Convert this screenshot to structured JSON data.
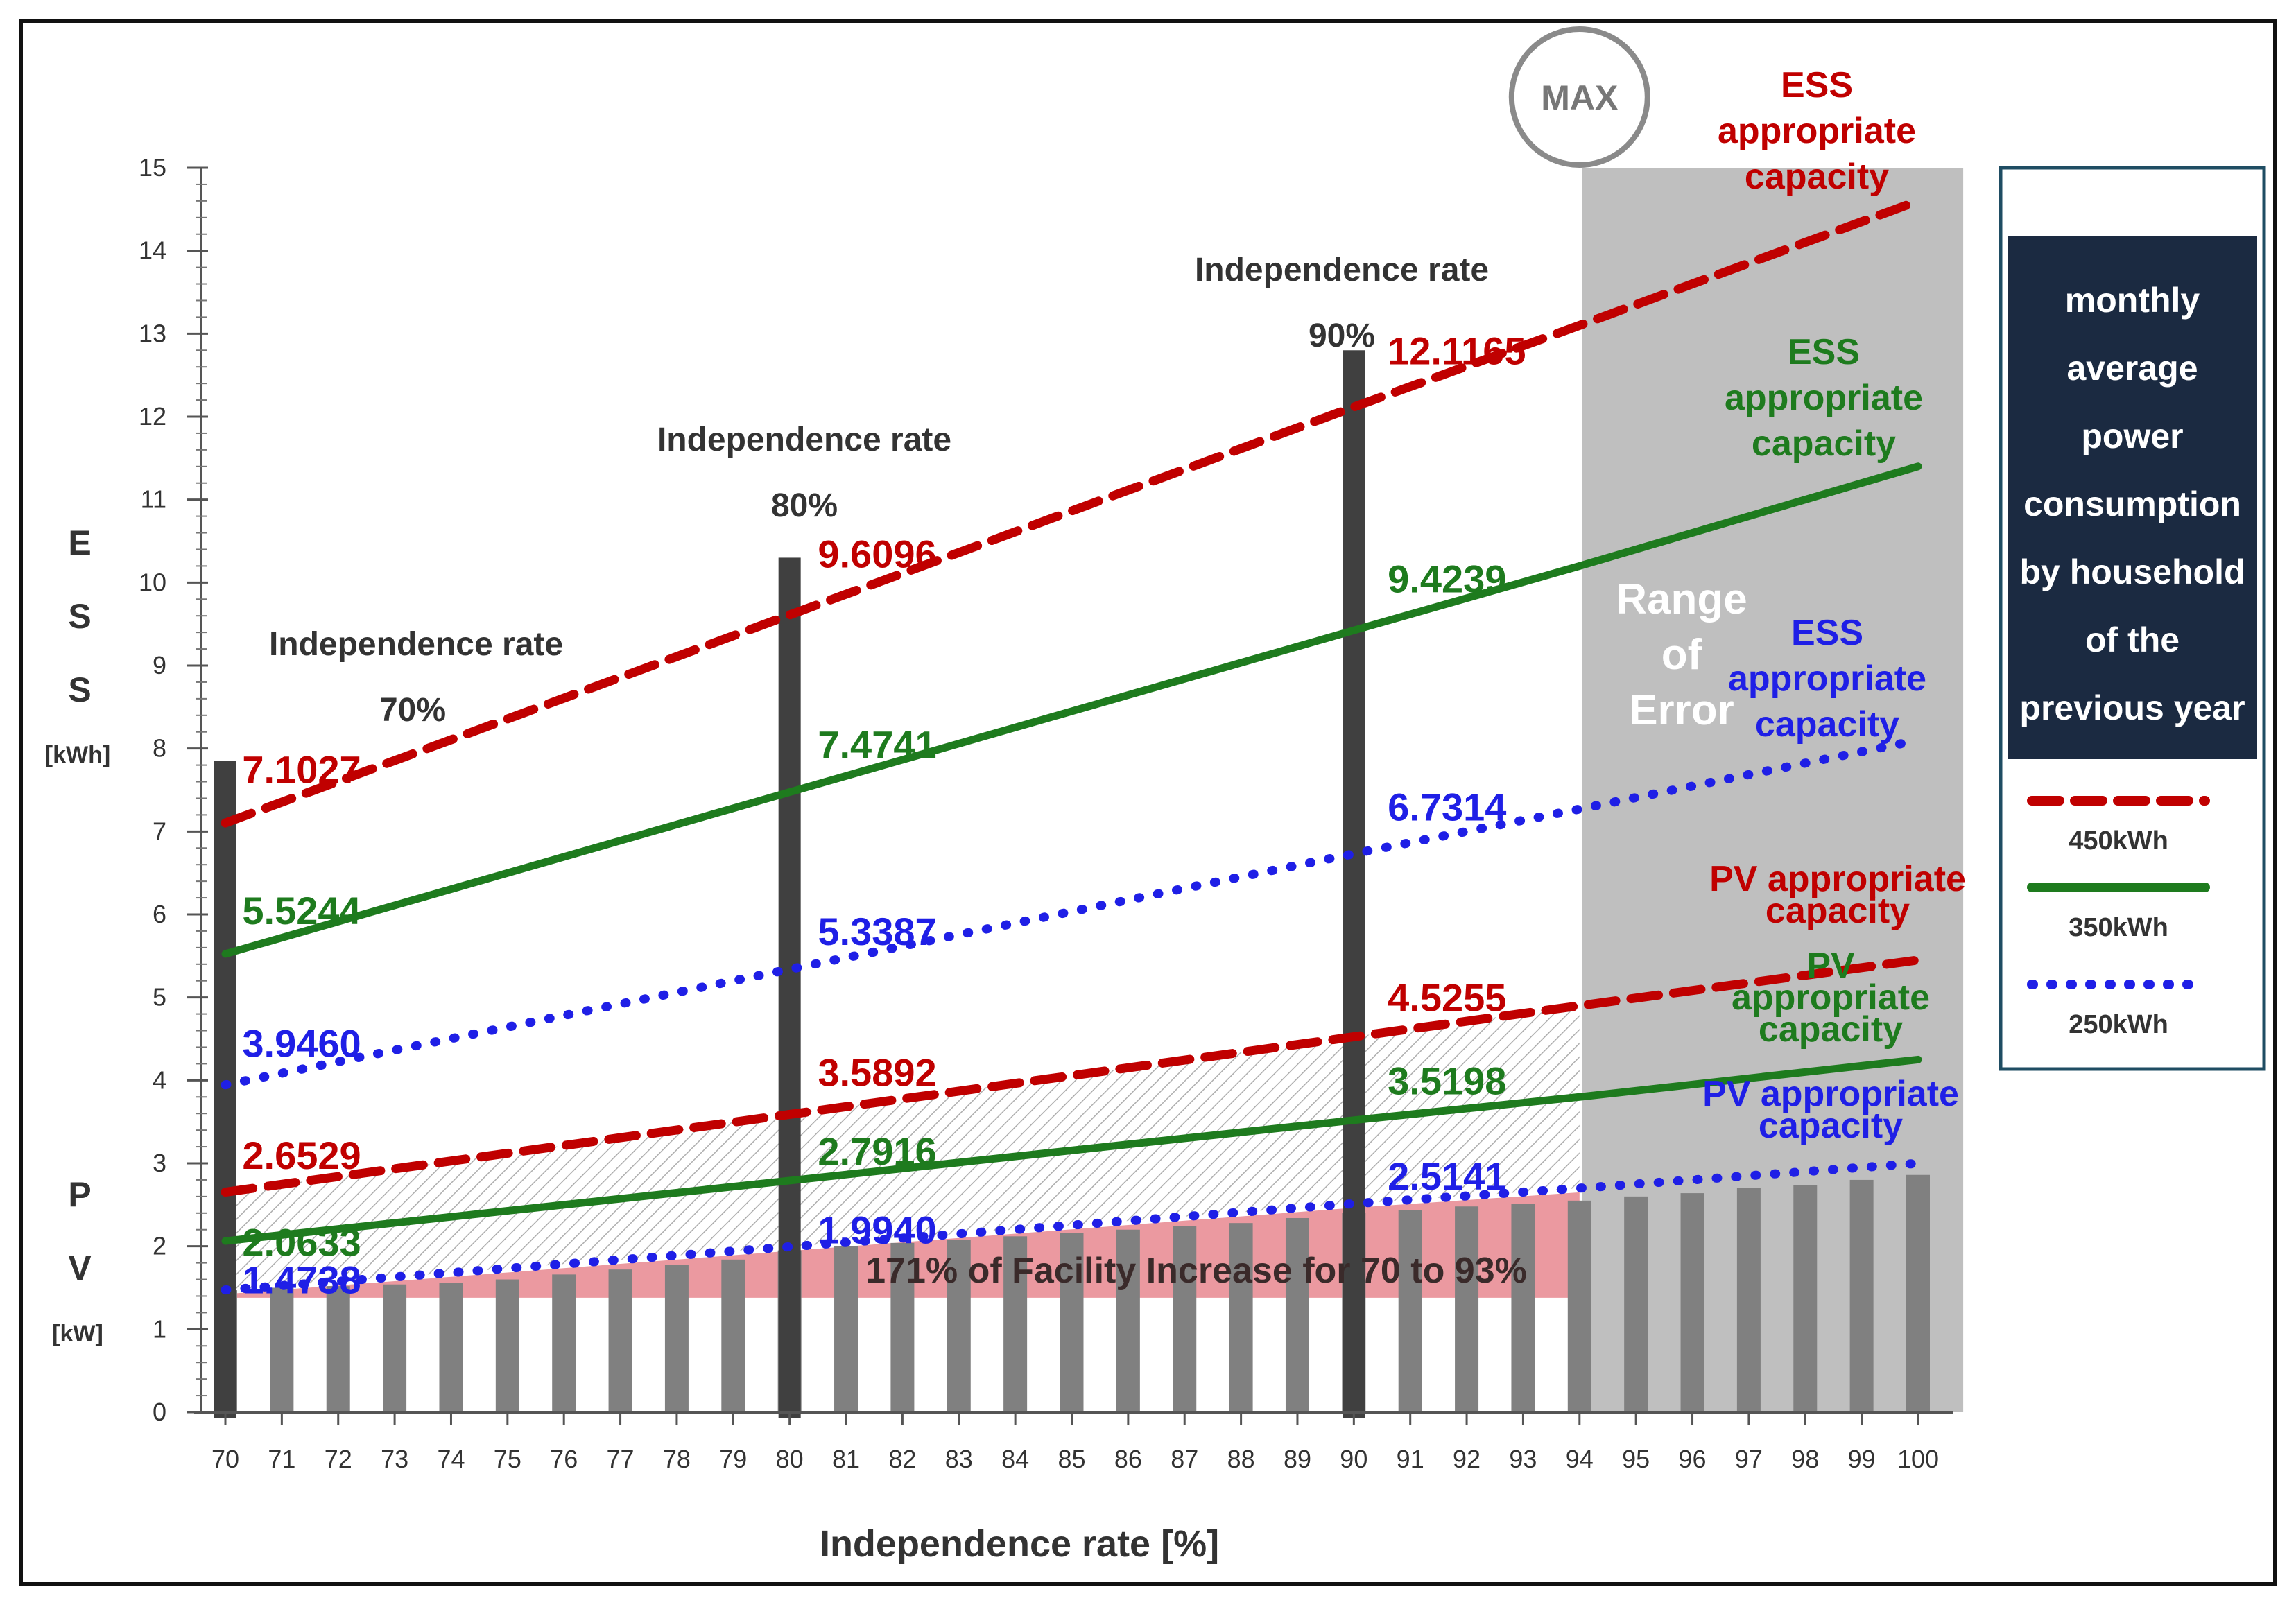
{
  "colors": {
    "kwh450": "#c00000",
    "kwh350": "#1e7b1e",
    "kwh250": "#1f1fe6",
    "bars": "#808080",
    "markers": "#404040",
    "error_region": "#bfbfbf",
    "increase_band": "#e8878f",
    "legend_box": "#1b2a41"
  },
  "chart_data": {
    "type": "line",
    "xlabel": "Independence  rate [%]",
    "x": [
      70,
      71,
      72,
      73,
      74,
      75,
      76,
      77,
      78,
      79,
      80,
      81,
      82,
      83,
      84,
      85,
      86,
      87,
      88,
      89,
      90,
      91,
      92,
      93,
      94,
      95,
      96,
      97,
      98,
      99,
      100
    ],
    "xlim": [
      70,
      100
    ],
    "ylim": [
      0,
      15
    ],
    "yticks": [
      0,
      1,
      2,
      3,
      4,
      5,
      6,
      7,
      8,
      9,
      10,
      11,
      12,
      13,
      14,
      15
    ],
    "ylabel_ess": [
      "E",
      "S",
      "S"
    ],
    "ylabel_ess_unit": "[kWh]",
    "ylabel_pv": [
      "P",
      "V"
    ],
    "ylabel_pv_unit": "[kW]",
    "series": [
      {
        "name": "ESS 450kWh",
        "legend": "450kWh",
        "style": "dashed",
        "color": "kwh450",
        "x": [
          70,
          80,
          90,
          94,
          100
        ],
        "values": [
          7.1027,
          9.6096,
          12.1165,
          13.1,
          14.6
        ]
      },
      {
        "name": "ESS 350kWh",
        "legend": "350kWh",
        "style": "solid",
        "color": "kwh350",
        "x": [
          70,
          80,
          90,
          94,
          100
        ],
        "values": [
          5.5244,
          7.4741,
          9.4239,
          10.2,
          11.4
        ]
      },
      {
        "name": "ESS 250kWh",
        "legend": "250kWh",
        "style": "dotted",
        "color": "kwh250",
        "x": [
          70,
          80,
          90,
          94,
          100
        ],
        "values": [
          3.946,
          5.3387,
          6.7314,
          7.27,
          8.1
        ]
      },
      {
        "name": "PV 450kWh",
        "style": "dashed",
        "color": "kwh450",
        "x": [
          70,
          80,
          90,
          94,
          100
        ],
        "values": [
          2.6529,
          3.5892,
          4.5255,
          4.9,
          5.45
        ]
      },
      {
        "name": "PV 350kWh",
        "style": "solid",
        "color": "kwh350",
        "x": [
          70,
          80,
          90,
          94,
          100
        ],
        "values": [
          2.0633,
          2.7916,
          3.5198,
          3.8,
          4.25
        ]
      },
      {
        "name": "PV 250kWh",
        "style": "dotted",
        "color": "kwh250",
        "x": [
          70,
          80,
          90,
          94,
          100
        ],
        "values": [
          1.4738,
          1.994,
          2.5141,
          2.7,
          3.0
        ]
      }
    ],
    "bar_values": [
      1.47,
      1.5,
      1.52,
      1.54,
      1.56,
      1.6,
      1.66,
      1.72,
      1.78,
      1.84,
      1.95,
      2.0,
      2.04,
      2.08,
      2.12,
      2.16,
      2.2,
      2.24,
      2.28,
      2.34,
      2.4,
      2.44,
      2.48,
      2.51,
      2.55,
      2.6,
      2.64,
      2.7,
      2.74,
      2.8,
      2.86
    ],
    "markers": [
      {
        "x": 70,
        "top": 7.85,
        "label_title": "Independence rate",
        "label_pct": "70%"
      },
      {
        "x": 80,
        "top": 10.3,
        "label_title": "Independence rate",
        "label_pct": "80%"
      },
      {
        "x": 90,
        "top": 12.8,
        "label_title": "Independence rate",
        "label_pct": "90%"
      }
    ],
    "value_labels": [
      {
        "text": "7.1027",
        "x": 70.3,
        "y": 7.75,
        "color": "kwh450"
      },
      {
        "text": "9.6096",
        "x": 80.5,
        "y": 10.35,
        "color": "kwh450"
      },
      {
        "text": "12.1165",
        "x": 90.6,
        "y": 12.8,
        "color": "kwh450"
      },
      {
        "text": "5.5244",
        "x": 70.3,
        "y": 6.05,
        "color": "kwh350"
      },
      {
        "text": "7.4741",
        "x": 80.5,
        "y": 8.05,
        "color": "kwh350"
      },
      {
        "text": "9.4239",
        "x": 90.6,
        "y": 10.05,
        "color": "kwh350"
      },
      {
        "text": "3.9460",
        "x": 70.3,
        "y": 4.45,
        "color": "kwh250"
      },
      {
        "text": "5.3387",
        "x": 80.5,
        "y": 5.8,
        "color": "kwh250"
      },
      {
        "text": "6.7314",
        "x": 90.6,
        "y": 7.3,
        "color": "kwh250"
      },
      {
        "text": "2.6529",
        "x": 70.3,
        "y": 3.1,
        "color": "kwh450"
      },
      {
        "text": "3.5892",
        "x": 80.5,
        "y": 4.1,
        "color": "kwh450"
      },
      {
        "text": "4.5255",
        "x": 90.6,
        "y": 5.0,
        "color": "kwh450"
      },
      {
        "text": "2.0633",
        "x": 70.3,
        "y": 2.05,
        "color": "kwh350"
      },
      {
        "text": "2.7916",
        "x": 80.5,
        "y": 3.15,
        "color": "kwh350"
      },
      {
        "text": "3.5198",
        "x": 90.6,
        "y": 4.0,
        "color": "kwh350"
      },
      {
        "text": "1.4738",
        "x": 70.3,
        "y": 1.6,
        "color": "kwh250"
      },
      {
        "text": "1.9940",
        "x": 80.5,
        "y": 2.2,
        "color": "kwh250"
      },
      {
        "text": "2.5141",
        "x": 90.6,
        "y": 2.85,
        "color": "kwh250"
      }
    ],
    "error_region": {
      "x_start": 94,
      "x_end": 100.8,
      "y_top": 15,
      "label": [
        "Range",
        "of",
        "Error"
      ]
    },
    "max_marker": {
      "x": 94,
      "label": "MAX"
    },
    "increase_band": {
      "x_start": 70,
      "x_end": 94,
      "label": "171% of Facility Increase for 70 to 93%"
    },
    "side_annotations": [
      {
        "lines": [
          "ESS",
          "appropriate",
          "capacity"
        ],
        "color": "kwh450"
      },
      {
        "lines": [
          "ESS",
          "appropriate",
          "capacity"
        ],
        "color": "kwh350"
      },
      {
        "lines": [
          "ESS",
          "appropriate",
          "capacity"
        ],
        "color": "kwh250"
      },
      {
        "lines": [
          "PV appropriate",
          "capacity"
        ],
        "color": "kwh450"
      },
      {
        "lines": [
          "PV",
          "appropriate",
          "capacity"
        ],
        "color": "kwh350"
      },
      {
        "lines": [
          "PV appropriate",
          "capacity"
        ],
        "color": "kwh250"
      }
    ],
    "legend": {
      "title_lines": [
        "monthly",
        "average",
        "power",
        "consumption",
        "by household",
        "of the",
        "previous year"
      ],
      "entries": [
        "450kWh",
        "350kWh",
        "250kWh"
      ]
    }
  }
}
